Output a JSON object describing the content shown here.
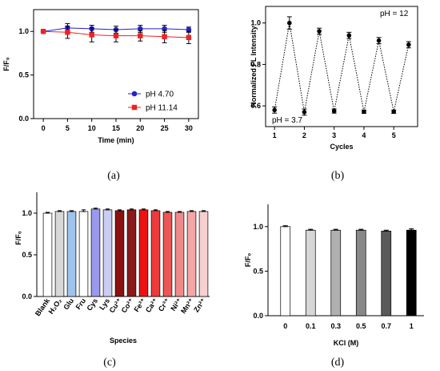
{
  "chart_data": [
    {
      "panel": "a",
      "caption": "(a)",
      "type": "line",
      "xlabel": "Time (min)",
      "ylabel": "F/F₀",
      "xlim": [
        -2,
        32
      ],
      "ylim": [
        0.0,
        1.25
      ],
      "xticks": [
        0,
        5,
        10,
        15,
        20,
        25,
        30
      ],
      "yticks": [
        "0.0",
        "0.5",
        "1.0"
      ],
      "x": [
        0,
        5,
        10,
        15,
        20,
        25,
        30
      ],
      "series": [
        {
          "name": "pH 4.70",
          "color": "#2222cc",
          "marker": "circle",
          "values": [
            1.0,
            1.04,
            1.03,
            1.02,
            1.03,
            1.03,
            1.02
          ],
          "errors": [
            0.01,
            0.05,
            0.04,
            0.04,
            0.04,
            0.04,
            0.03
          ]
        },
        {
          "name": "pH 11.14",
          "color": "#ee2222",
          "marker": "square",
          "values": [
            1.0,
            0.99,
            0.96,
            0.95,
            0.95,
            0.94,
            0.93
          ],
          "errors": [
            0.01,
            0.07,
            0.08,
            0.07,
            0.06,
            0.07,
            0.07
          ]
        }
      ],
      "legend": "bottom-right"
    },
    {
      "panel": "b",
      "caption": "(b)",
      "type": "scatter",
      "xlabel": "Cycles",
      "ylabel": "Normalized FL Intensity",
      "xlim": [
        0.7,
        5.8
      ],
      "ylim": [
        0.5,
        1.08
      ],
      "xticks": [
        1,
        2,
        3,
        4,
        5
      ],
      "yticks": [
        "0.6",
        "0.8",
        "1.0"
      ],
      "x": [
        1,
        1.5,
        2,
        2.5,
        3,
        3.5,
        4,
        4.5,
        5,
        5.5
      ],
      "values": [
        0.58,
        1.0,
        0.57,
        0.96,
        0.575,
        0.94,
        0.572,
        0.915,
        0.572,
        0.895
      ],
      "errors": [
        0.015,
        0.03,
        0.015,
        0.015,
        0.01,
        0.015,
        0.008,
        0.015,
        0.008,
        0.015
      ],
      "annotations": [
        "pH = 12",
        "pH = 3.7"
      ]
    },
    {
      "panel": "c",
      "caption": "(c)",
      "type": "bar",
      "xlabel": "Species",
      "ylabel": "F/F₀",
      "ylim": [
        0.0,
        1.25
      ],
      "yticks": [
        "0.0",
        "0.5",
        "1.0"
      ],
      "categories": [
        "Blank",
        "H₂O₂",
        "Glu",
        "Fru",
        "Cys",
        "Lys",
        "Cu²⁺",
        "Co²⁺",
        "Fe³⁺",
        "Ca²⁺",
        "Cr³⁺",
        "Ni²⁺",
        "Mn²⁺",
        "Zn²⁺"
      ],
      "values": [
        1.0,
        1.02,
        1.02,
        1.02,
        1.05,
        1.04,
        1.03,
        1.04,
        1.04,
        1.03,
        1.01,
        1.01,
        1.02,
        1.02
      ],
      "errors": [
        0.01,
        0.01,
        0.01,
        0.02,
        0.01,
        0.01,
        0.01,
        0.01,
        0.01,
        0.01,
        0.01,
        0.01,
        0.01,
        0.01
      ],
      "colors": [
        "#ffffff",
        "#d8d8d8",
        "#9ec4ee",
        "#ffffff",
        "#9999ee",
        "#cccdf2",
        "#8b1010",
        "#8b1a1a",
        "#ee1111",
        "#ee3a3a",
        "#ee5555",
        "#f08a8a",
        "#f4a6a6",
        "#f8d0d0"
      ]
    },
    {
      "panel": "d",
      "caption": "(d)",
      "type": "bar",
      "xlabel": "KCl (M)",
      "ylabel": "F/F₀",
      "ylim": [
        0.0,
        1.25
      ],
      "yticks": [
        "0.0",
        "0.5",
        "1.0"
      ],
      "categories": [
        "0",
        "0.1",
        "0.3",
        "0.5",
        "0.7",
        "1"
      ],
      "values": [
        1.0,
        0.96,
        0.96,
        0.96,
        0.95,
        0.96
      ],
      "errors": [
        0.01,
        0.01,
        0.01,
        0.01,
        0.01,
        0.015
      ],
      "colors": [
        "#ffffff",
        "#d6d6d6",
        "#b0b0b0",
        "#888888",
        "#5a5a5a",
        "#000000"
      ]
    }
  ]
}
